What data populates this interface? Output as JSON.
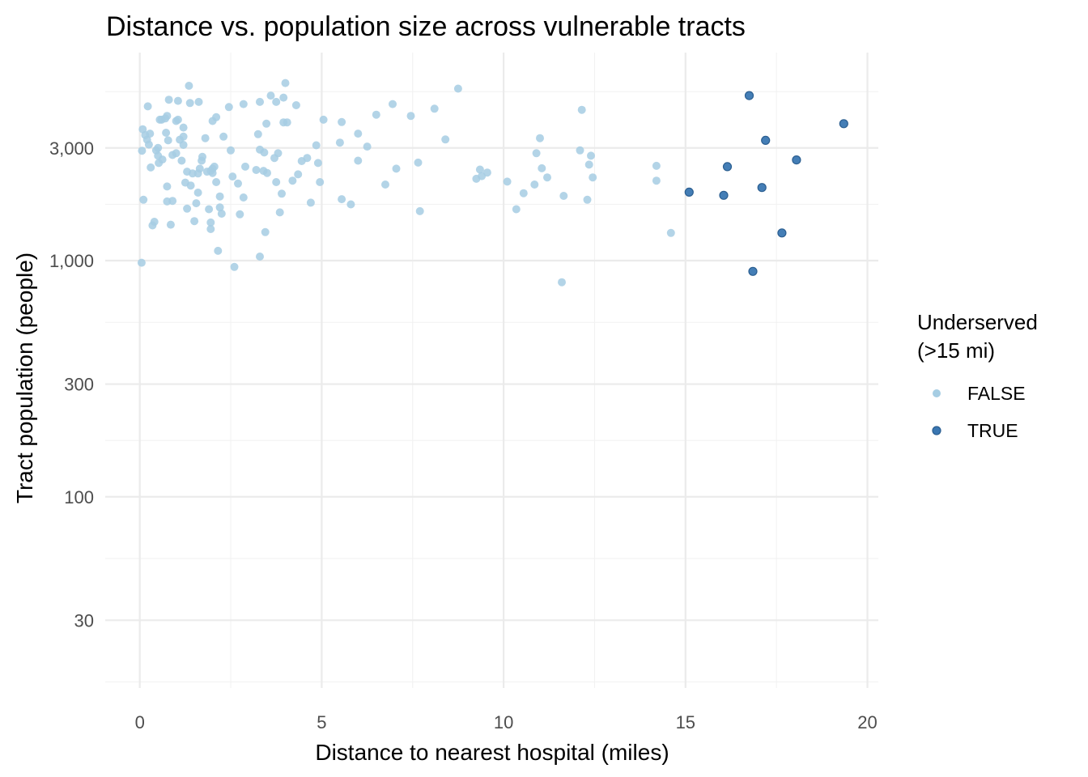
{
  "chart_data": {
    "type": "scatter",
    "title": "Distance vs. population size across vulnerable tracts",
    "xlabel": "Distance to nearest hospital (miles)",
    "ylabel": "Tract population (people)",
    "xlim": [
      -0.95,
      20.3
    ],
    "ylim": [
      15.5,
      7600
    ],
    "y_scale": "log10",
    "x_ticks": [
      0,
      5,
      10,
      15,
      20
    ],
    "x_tick_labels": [
      "0",
      "5",
      "10",
      "15",
      "20"
    ],
    "y_ticks": [
      30,
      100,
      300,
      1000,
      3000
    ],
    "y_tick_labels": [
      "30",
      "100",
      "300",
      "1,000",
      "3,000"
    ],
    "grid": true,
    "legend": {
      "title_lines": [
        "Underserved",
        "(>15 mi)"
      ],
      "position": "right"
    },
    "series": [
      {
        "name": "FALSE",
        "color": "#a6cde3",
        "points": [
          [
            0.05,
            980
          ],
          [
            0.06,
            2920
          ],
          [
            0.08,
            3600
          ],
          [
            0.1,
            1810
          ],
          [
            0.15,
            3400
          ],
          [
            0.2,
            3250
          ],
          [
            0.22,
            4500
          ],
          [
            0.25,
            3100
          ],
          [
            0.28,
            3450
          ],
          [
            0.3,
            2480
          ],
          [
            0.35,
            1410
          ],
          [
            0.4,
            1460
          ],
          [
            0.45,
            2930
          ],
          [
            0.5,
            3000
          ],
          [
            0.5,
            2780
          ],
          [
            0.52,
            2590
          ],
          [
            0.55,
            3950
          ],
          [
            0.6,
            3950
          ],
          [
            0.62,
            2680
          ],
          [
            0.7,
            4000
          ],
          [
            0.72,
            3480
          ],
          [
            0.75,
            4100
          ],
          [
            0.75,
            2060
          ],
          [
            0.75,
            1780
          ],
          [
            0.78,
            3230
          ],
          [
            0.8,
            4800
          ],
          [
            0.85,
            1420
          ],
          [
            0.9,
            1790
          ],
          [
            0.9,
            2800
          ],
          [
            1.0,
            2850
          ],
          [
            1.0,
            3900
          ],
          [
            1.05,
            3950
          ],
          [
            1.05,
            4750
          ],
          [
            1.1,
            3250
          ],
          [
            1.15,
            2650
          ],
          [
            1.2,
            3090
          ],
          [
            1.2,
            3350
          ],
          [
            1.2,
            3660
          ],
          [
            1.25,
            2140
          ],
          [
            1.3,
            1660
          ],
          [
            1.3,
            2380
          ],
          [
            1.35,
            5500
          ],
          [
            1.38,
            4650
          ],
          [
            1.4,
            2080
          ],
          [
            1.45,
            2340
          ],
          [
            1.5,
            1470
          ],
          [
            1.55,
            1750
          ],
          [
            1.6,
            2340
          ],
          [
            1.6,
            1940
          ],
          [
            1.62,
            4700
          ],
          [
            1.65,
            2450
          ],
          [
            1.7,
            2650
          ],
          [
            1.72,
            2750
          ],
          [
            1.8,
            3300
          ],
          [
            1.85,
            2380
          ],
          [
            1.9,
            1650
          ],
          [
            1.95,
            2400
          ],
          [
            1.95,
            1450
          ],
          [
            1.95,
            1360
          ],
          [
            2.0,
            2450
          ],
          [
            2.0,
            3900
          ],
          [
            2.0,
            2350
          ],
          [
            2.05,
            2500
          ],
          [
            2.1,
            4050
          ],
          [
            2.1,
            2150
          ],
          [
            2.15,
            1100
          ],
          [
            2.2,
            1680
          ],
          [
            2.2,
            1870
          ],
          [
            2.25,
            1580
          ],
          [
            2.3,
            3350
          ],
          [
            2.45,
            4470
          ],
          [
            2.5,
            2930
          ],
          [
            2.55,
            2270
          ],
          [
            2.6,
            940
          ],
          [
            2.7,
            2120
          ],
          [
            2.75,
            1570
          ],
          [
            2.85,
            4600
          ],
          [
            2.85,
            1850
          ],
          [
            2.9,
            2500
          ],
          [
            3.2,
            2420
          ],
          [
            3.25,
            3430
          ],
          [
            3.3,
            2950
          ],
          [
            3.3,
            1040
          ],
          [
            3.3,
            4700
          ],
          [
            3.4,
            2400
          ],
          [
            3.42,
            2870
          ],
          [
            3.45,
            1320
          ],
          [
            3.48,
            3800
          ],
          [
            3.5,
            2350
          ],
          [
            3.6,
            5000
          ],
          [
            3.7,
            2720
          ],
          [
            3.75,
            4700
          ],
          [
            3.75,
            2150
          ],
          [
            3.8,
            2850
          ],
          [
            3.85,
            1600
          ],
          [
            3.9,
            1920
          ],
          [
            3.95,
            4900
          ],
          [
            3.95,
            3850
          ],
          [
            4.0,
            5650
          ],
          [
            4.05,
            3850
          ],
          [
            4.2,
            2180
          ],
          [
            4.3,
            4550
          ],
          [
            4.35,
            2320
          ],
          [
            4.45,
            2640
          ],
          [
            4.6,
            2720
          ],
          [
            4.7,
            1760
          ],
          [
            4.85,
            3080
          ],
          [
            4.9,
            2590
          ],
          [
            4.95,
            2150
          ],
          [
            5.05,
            3950
          ],
          [
            5.5,
            3160
          ],
          [
            5.55,
            1820
          ],
          [
            5.55,
            3860
          ],
          [
            5.8,
            1730
          ],
          [
            6.0,
            2650
          ],
          [
            6.0,
            3450
          ],
          [
            6.25,
            3040
          ],
          [
            6.5,
            4150
          ],
          [
            6.75,
            2100
          ],
          [
            6.95,
            4600
          ],
          [
            7.05,
            2450
          ],
          [
            7.45,
            4100
          ],
          [
            7.65,
            2600
          ],
          [
            7.7,
            1620
          ],
          [
            8.1,
            4400
          ],
          [
            8.4,
            3260
          ],
          [
            8.75,
            5350
          ],
          [
            9.25,
            2220
          ],
          [
            9.35,
            2430
          ],
          [
            9.4,
            2280
          ],
          [
            9.55,
            2360
          ],
          [
            10.1,
            2160
          ],
          [
            10.35,
            1650
          ],
          [
            10.55,
            1930
          ],
          [
            10.85,
            2100
          ],
          [
            10.9,
            2850
          ],
          [
            11.0,
            3300
          ],
          [
            11.05,
            2460
          ],
          [
            11.2,
            2250
          ],
          [
            11.6,
            810
          ],
          [
            11.65,
            1880
          ],
          [
            12.1,
            2930
          ],
          [
            12.15,
            4350
          ],
          [
            12.3,
            1810
          ],
          [
            12.35,
            2550
          ],
          [
            12.4,
            2780
          ],
          [
            12.45,
            2250
          ],
          [
            14.2,
            2520
          ],
          [
            14.2,
            2180
          ],
          [
            14.6,
            1310
          ]
        ]
      },
      {
        "name": "TRUE",
        "color": "#3a77b2",
        "points": [
          [
            15.1,
            1950
          ],
          [
            16.05,
            1890
          ],
          [
            16.15,
            2500
          ],
          [
            16.75,
            5000
          ],
          [
            16.85,
            900
          ],
          [
            17.1,
            2040
          ],
          [
            17.2,
            3230
          ],
          [
            17.65,
            1310
          ],
          [
            18.05,
            2670
          ],
          [
            19.35,
            3800
          ]
        ]
      }
    ]
  }
}
